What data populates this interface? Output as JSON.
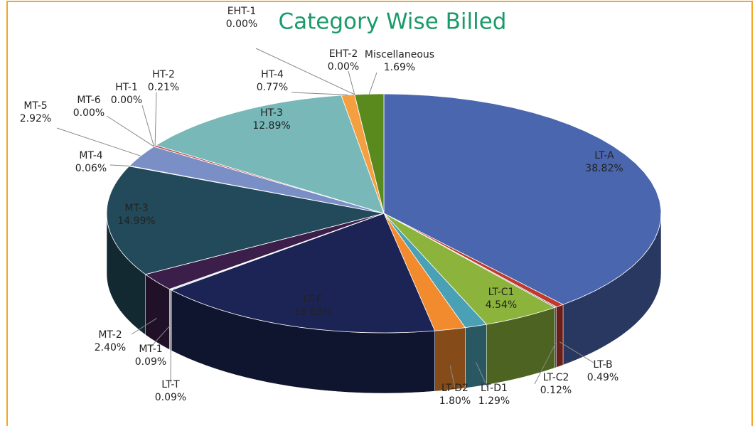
{
  "chart_data": {
    "type": "pie3d",
    "title": "Category Wise Billed",
    "categories": [
      "LT-A",
      "LT-B",
      "LT-C2",
      "LT-C1",
      "LT-D1",
      "LT-D2",
      "LT-E",
      "LT-T",
      "MT-1",
      "MT-2",
      "MT-3",
      "MT-4",
      "MT-5",
      "MT-6",
      "HT-1",
      "HT-2",
      "HT-3",
      "HT-4",
      "EHT-1",
      "EHT-2",
      "Miscellaneous"
    ],
    "values": [
      38.82,
      0.49,
      0.12,
      4.54,
      1.29,
      1.8,
      16.83,
      0.09,
      0.09,
      2.4,
      14.99,
      0.06,
      2.92,
      0,
      0,
      0.21,
      12.89,
      0.77,
      0,
      0,
      1.69
    ],
    "value_labels": [
      "38.82%",
      "0.49%",
      "0.12%",
      "4.54%",
      "1.29%",
      "1.80%",
      "16.83%",
      "0.09%",
      "0.09%",
      "2.40%",
      "14.99%",
      "0.06%",
      "2.92%",
      "0.00%",
      "0.00%",
      "0.21%",
      "12.89%",
      "0.77%",
      "0.00%",
      "0.00%",
      "1.69%"
    ],
    "colors": [
      "#4a66ae",
      "#c0392b",
      "#8a7aa8",
      "#8cb43c",
      "#4aa0b4",
      "#f28a2e",
      "#1c2456",
      "#a9b4d6",
      "#c9c9c9",
      "#3b1f4a",
      "#234a5a",
      "#c8cce0",
      "#7b8fc7",
      "#cccccc",
      "#bbbbbb",
      "#c05050",
      "#78b8b8",
      "#f4a040",
      "#dddddd",
      "#e0e0e0",
      "#5a8a1e"
    ]
  }
}
